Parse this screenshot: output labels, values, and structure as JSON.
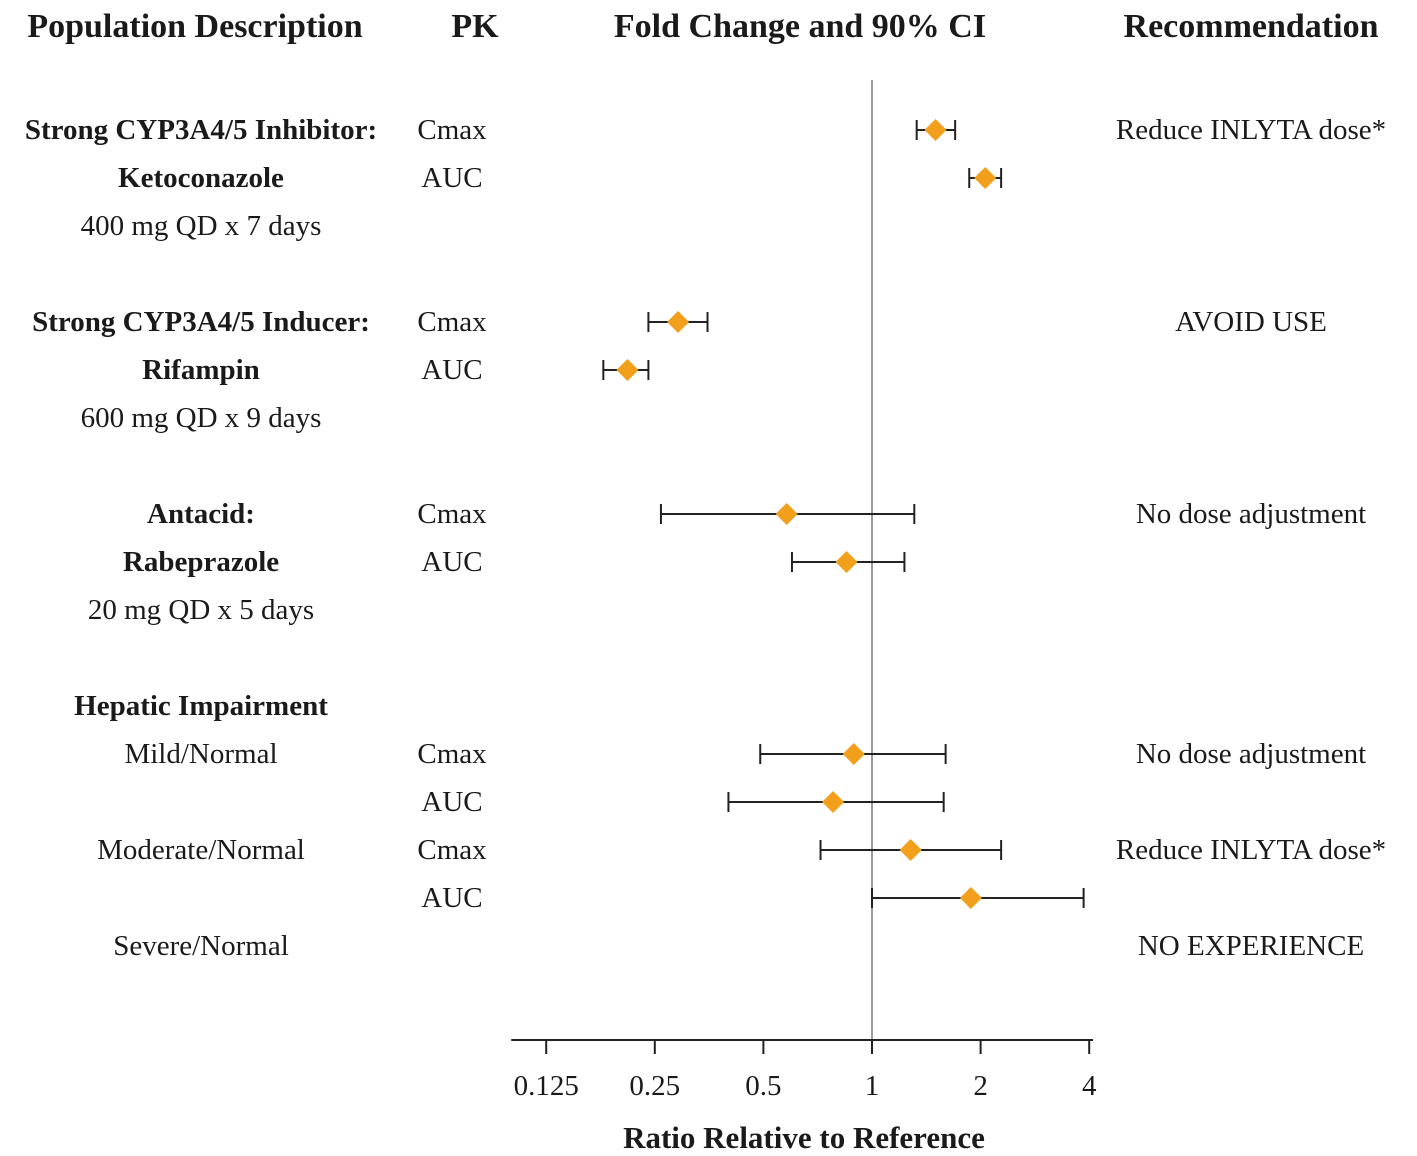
{
  "headers": {
    "population": "Population Description",
    "pk": "PK",
    "fold": "Fold Change and 90% CI",
    "recommendation": "Recommendation"
  },
  "rows": [
    {
      "pop": "Strong CYP3A4/5 Inhibitor:",
      "pop_bold": true,
      "pk": "Cmax",
      "rec": "Reduce INLYTA dose*"
    },
    {
      "pop": "Ketoconazole",
      "pop_bold": true,
      "pk": "AUC",
      "rec": ""
    },
    {
      "pop": "400 mg QD x 7 days",
      "pop_bold": false,
      "pk": "",
      "rec": ""
    },
    {
      "pop": "",
      "pop_bold": false,
      "pk": "",
      "rec": ""
    },
    {
      "pop": "Strong CYP3A4/5 Inducer:",
      "pop_bold": true,
      "pk": "Cmax",
      "rec": "AVOID USE"
    },
    {
      "pop": "Rifampin",
      "pop_bold": true,
      "pk": "AUC",
      "rec": ""
    },
    {
      "pop": "600 mg QD x 9 days",
      "pop_bold": false,
      "pk": "",
      "rec": ""
    },
    {
      "pop": "",
      "pop_bold": false,
      "pk": "",
      "rec": ""
    },
    {
      "pop": "Antacid:",
      "pop_bold": true,
      "pk": "Cmax",
      "rec": "No dose adjustment"
    },
    {
      "pop": "Rabeprazole",
      "pop_bold": true,
      "pk": "AUC",
      "rec": ""
    },
    {
      "pop": "20 mg QD x 5 days",
      "pop_bold": false,
      "pk": "",
      "rec": ""
    },
    {
      "pop": "",
      "pop_bold": false,
      "pk": "",
      "rec": ""
    },
    {
      "pop": "Hepatic Impairment",
      "pop_bold": true,
      "pk": "",
      "rec": ""
    },
    {
      "pop": "Mild/Normal",
      "pop_bold": false,
      "pk": "Cmax",
      "rec": "No dose adjustment"
    },
    {
      "pop": "",
      "pop_bold": false,
      "pk": "AUC",
      "rec": ""
    },
    {
      "pop": "Moderate/Normal",
      "pop_bold": false,
      "pk": "Cmax",
      "rec": "Reduce INLYTA dose*"
    },
    {
      "pop": "",
      "pop_bold": false,
      "pk": "AUC",
      "rec": ""
    },
    {
      "pop": "Severe/Normal",
      "pop_bold": false,
      "pk": "",
      "rec": "NO EXPERIENCE"
    }
  ],
  "chart_data": {
    "type": "forest",
    "title": "Fold Change and 90% CI",
    "xlabel": "Ratio Relative to Reference",
    "x_scale": "log2",
    "xlim": [
      0.1,
      4.1
    ],
    "xticks": [
      0.125,
      0.25,
      0.5,
      1,
      2,
      4
    ],
    "xtick_labels": [
      "0.125",
      "0.25",
      "0.5",
      "1",
      "2",
      "4"
    ],
    "reference_line": 1,
    "marker_color": "#f2a01c",
    "estimates": [
      {
        "row": 0,
        "label": "Ketoconazole Cmax",
        "point": 1.5,
        "lo": 1.33,
        "hi": 1.7
      },
      {
        "row": 1,
        "label": "Ketoconazole AUC",
        "point": 2.06,
        "lo": 1.86,
        "hi": 2.28
      },
      {
        "row": 4,
        "label": "Rifampin Cmax",
        "point": 0.29,
        "lo": 0.24,
        "hi": 0.35
      },
      {
        "row": 5,
        "label": "Rifampin AUC",
        "point": 0.21,
        "lo": 0.18,
        "hi": 0.24
      },
      {
        "row": 8,
        "label": "Rabeprazole Cmax",
        "point": 0.58,
        "lo": 0.26,
        "hi": 1.31
      },
      {
        "row": 9,
        "label": "Rabeprazole AUC",
        "point": 0.85,
        "lo": 0.6,
        "hi": 1.23
      },
      {
        "row": 13,
        "label": "Mild/Normal Cmax",
        "point": 0.89,
        "lo": 0.49,
        "hi": 1.6
      },
      {
        "row": 14,
        "label": "Mild/Normal AUC",
        "point": 0.78,
        "lo": 0.4,
        "hi": 1.58
      },
      {
        "row": 15,
        "label": "Moderate/Normal Cmax",
        "point": 1.28,
        "lo": 0.72,
        "hi": 2.28
      },
      {
        "row": 16,
        "label": "Moderate/Normal AUC",
        "point": 1.88,
        "lo": 1.0,
        "hi": 3.86
      }
    ]
  }
}
